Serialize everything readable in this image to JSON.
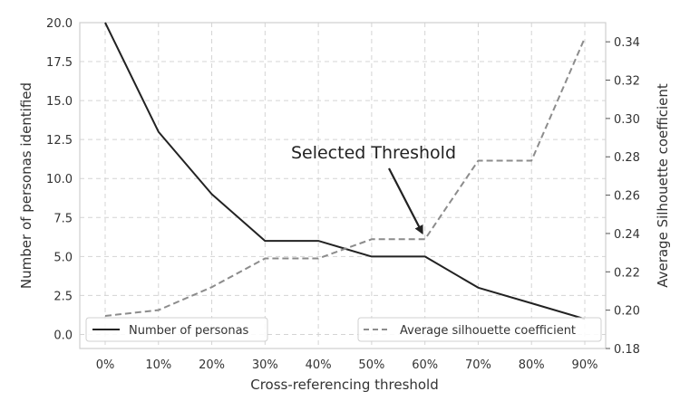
{
  "chart_data": {
    "type": "line",
    "xlabel": "Cross-referencing threshold",
    "ylabel_left": "Number of personas identified",
    "ylabel_right": "Average Silhouette coefficient",
    "x": [
      "0%",
      "10%",
      "20%",
      "30%",
      "40%",
      "50%",
      "60%",
      "70%",
      "80%",
      "90%"
    ],
    "ylim_left": [
      -0.9,
      20.0
    ],
    "ylim_right": [
      0.18,
      0.35
    ],
    "yticks_left": [
      "0.0",
      "2.5",
      "5.0",
      "7.5",
      "10.0",
      "12.5",
      "15.0",
      "17.5",
      "20.0"
    ],
    "yticks_right": [
      "0.18",
      "0.20",
      "0.22",
      "0.24",
      "0.26",
      "0.28",
      "0.30",
      "0.32",
      "0.34"
    ],
    "grid": true,
    "series": [
      {
        "name": "Number of personas",
        "axis": "left",
        "style": "solid",
        "color": "#222222",
        "values": [
          20,
          13,
          9,
          6,
          6,
          5,
          5,
          3,
          2,
          1
        ]
      },
      {
        "name": "Average silhouette coefficient",
        "axis": "right",
        "style": "dashed",
        "color": "#8c8c8c",
        "values": [
          0.197,
          0.2,
          0.212,
          0.227,
          0.227,
          0.237,
          0.237,
          0.278,
          0.278,
          0.342
        ]
      }
    ],
    "annotations": [
      {
        "text": "Selected Threshold",
        "x": "60%",
        "series": "Average silhouette coefficient"
      }
    ],
    "legends": [
      {
        "placement": "lower-left",
        "entries": [
          "Number of personas"
        ]
      },
      {
        "placement": "lower-right",
        "entries": [
          "Average silhouette coefficient"
        ]
      }
    ]
  }
}
